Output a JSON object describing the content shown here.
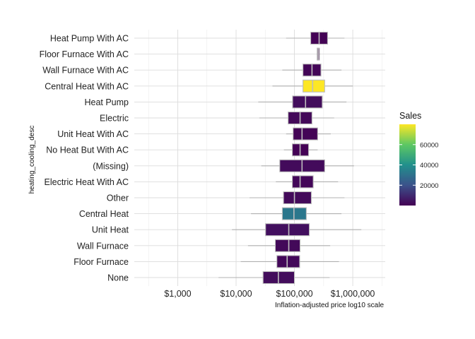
{
  "chart_data": {
    "type": "boxplot",
    "orientation": "horizontal",
    "xlabel": "Inflation-adjusted price log10 scale",
    "ylabel": "heating_cooling_desc",
    "x_scale": "log10",
    "xlim": [
      180,
      3600000
    ],
    "x_ticks": [
      {
        "value": 1000,
        "label": "$1,000"
      },
      {
        "value": 10000,
        "label": "$10,000"
      },
      {
        "value": 100000,
        "label": "$100,000"
      },
      {
        "value": 1000000,
        "label": "$1,000,000"
      }
    ],
    "x_minor_ticks": [
      316,
      3162,
      31623,
      316228,
      3162278
    ],
    "grid": true,
    "legend": {
      "title": "Sales",
      "position": "right",
      "min": 1,
      "max": 80000,
      "ticks": [
        {
          "value": 20000,
          "label": "20000"
        },
        {
          "value": 40000,
          "label": "40000"
        },
        {
          "value": 60000,
          "label": "60000"
        }
      ]
    },
    "categories": [
      {
        "name": "Heat Pump With AC",
        "whisker_low": 72000,
        "q1": 190000,
        "median": 265000,
        "q3": 370000,
        "whisker_high": 720000,
        "sales": 500
      },
      {
        "name": "Floor Furnace With AC",
        "whisker_low": 240000,
        "q1": 245000,
        "median": 255000,
        "q3": 268000,
        "whisker_high": 275000,
        "sales": 20
      },
      {
        "name": "Wall Furnace With AC",
        "whisker_low": 62000,
        "q1": 140000,
        "median": 200000,
        "q3": 285000,
        "whisker_high": 640000,
        "sales": 1200
      },
      {
        "name": "Central Heat With AC",
        "whisker_low": 42000,
        "q1": 140000,
        "median": 205000,
        "q3": 330000,
        "whisker_high": 1000000,
        "sales": 80000
      },
      {
        "name": "Heat Pump",
        "whisker_low": 24000,
        "q1": 93000,
        "median": 155000,
        "q3": 300000,
        "whisker_high": 780000,
        "sales": 3000
      },
      {
        "name": "Electric",
        "whisker_low": 25000,
        "q1": 78000,
        "median": 125000,
        "q3": 200000,
        "whisker_high": 480000,
        "sales": 2000
      },
      {
        "name": "Unit Heat With AC",
        "whisker_low": 72000,
        "q1": 95000,
        "median": 135000,
        "q3": 250000,
        "whisker_high": 420000,
        "sales": 700
      },
      {
        "name": "No Heat But With AC",
        "whisker_low": 66000,
        "q1": 92000,
        "median": 125000,
        "q3": 175000,
        "whisker_high": 250000,
        "sales": 300
      },
      {
        "name": "(Missing)",
        "whisker_low": 27000,
        "q1": 56000,
        "median": 135000,
        "q3": 330000,
        "whisker_high": 1050000,
        "sales": 2500
      },
      {
        "name": "Electric Heat With AC",
        "whisker_low": 48000,
        "q1": 92000,
        "median": 125000,
        "q3": 210000,
        "whisker_high": 560000,
        "sales": 1500
      },
      {
        "name": "Other",
        "whisker_low": 17000,
        "q1": 65000,
        "median": 100000,
        "q3": 195000,
        "whisker_high": 720000,
        "sales": 2200
      },
      {
        "name": "Central Heat",
        "whisker_low": 18000,
        "q1": 62000,
        "median": 98000,
        "q3": 160000,
        "whisker_high": 640000,
        "sales": 32000
      },
      {
        "name": "Unit Heat",
        "whisker_low": 8500,
        "q1": 32000,
        "median": 80000,
        "q3": 180000,
        "whisker_high": 1400000,
        "sales": 3500
      },
      {
        "name": "Wall Furnace",
        "whisker_low": 16000,
        "q1": 47000,
        "median": 80000,
        "q3": 125000,
        "whisker_high": 410000,
        "sales": 2000
      },
      {
        "name": "Floor Furnace",
        "whisker_low": 12000,
        "q1": 50000,
        "median": 75000,
        "q3": 123000,
        "whisker_high": 580000,
        "sales": 1800
      },
      {
        "name": "None",
        "whisker_low": 5000,
        "q1": 29000,
        "median": 53000,
        "q3": 100000,
        "whisker_high": 400000,
        "sales": 3000
      }
    ]
  },
  "colors": {
    "viridis_stops": [
      "#440154",
      "#3b528b",
      "#21908c",
      "#5dc863",
      "#fde725"
    ],
    "box_outline": "#bdbdbd",
    "whisker": "#b0b0b0",
    "grid_major": "#dcdcdc",
    "grid_minor": "#ececec"
  }
}
